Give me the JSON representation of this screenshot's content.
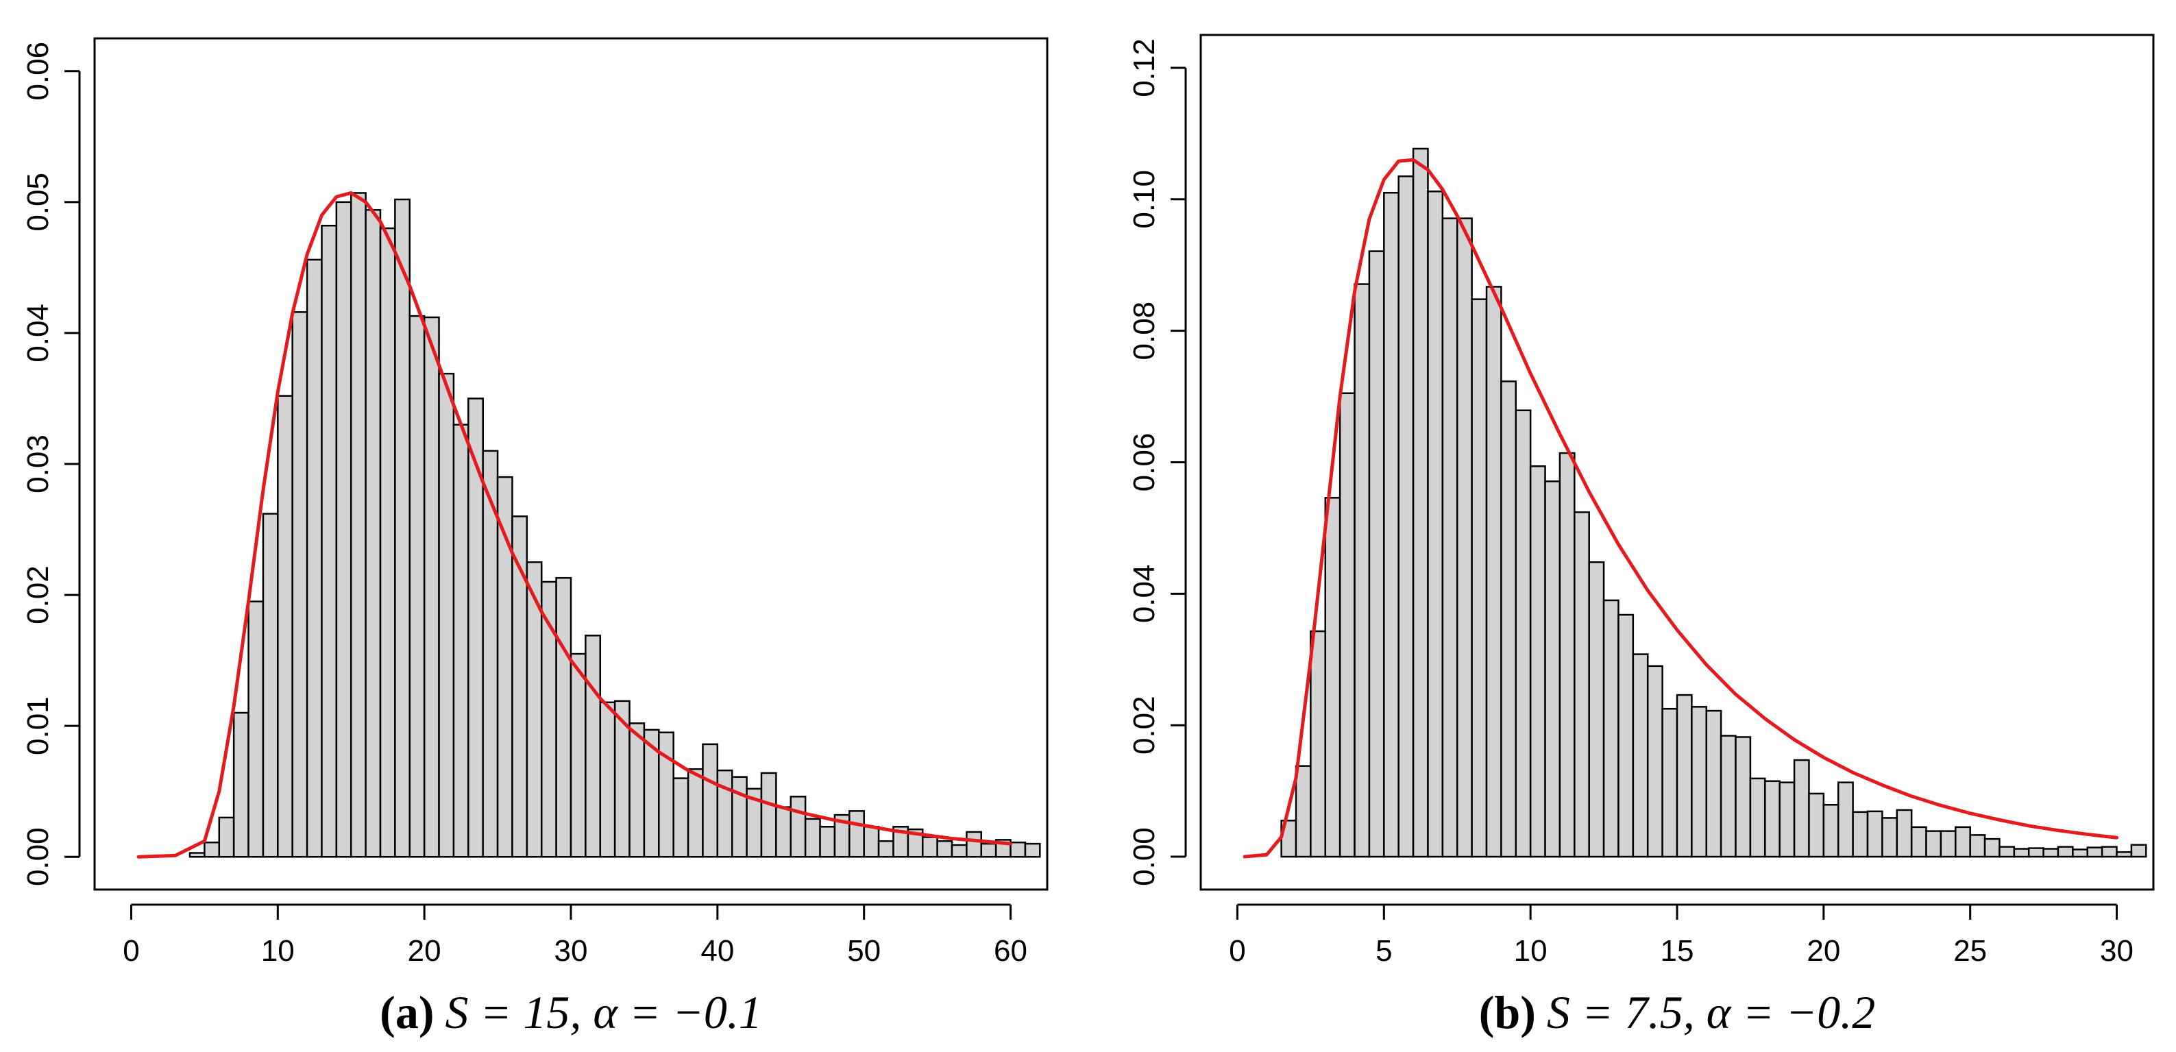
{
  "chart_data": [
    {
      "type": "bar",
      "caption": {
        "letter": "(a)",
        "text": "S = 15, α = −0.1"
      },
      "xlim": [
        -2.5,
        62.5
      ],
      "ylim": [
        -0.0025,
        0.0625
      ],
      "xticks": [
        0,
        10,
        20,
        30,
        40,
        50,
        60
      ],
      "xtick_labels": [
        "0",
        "10",
        "20",
        "30",
        "40",
        "50",
        "60"
      ],
      "yticks": [
        0.0,
        0.01,
        0.02,
        0.03,
        0.04,
        0.05,
        0.06
      ],
      "ytick_labels": [
        "0.00",
        "0.01",
        "0.02",
        "0.03",
        "0.04",
        "0.05",
        "0.06"
      ],
      "bin_start": 4,
      "bin_width": 1,
      "bar_fill": "#d3d3d3",
      "bar_stroke": "#000000",
      "values": [
        0.0003,
        0.0011,
        0.003,
        0.011,
        0.0195,
        0.0262,
        0.0352,
        0.0416,
        0.0456,
        0.0482,
        0.05,
        0.0507,
        0.0494,
        0.048,
        0.0502,
        0.0413,
        0.0412,
        0.0369,
        0.033,
        0.035,
        0.031,
        0.029,
        0.026,
        0.0225,
        0.021,
        0.0213,
        0.0155,
        0.0169,
        0.0118,
        0.0119,
        0.0102,
        0.0097,
        0.0095,
        0.006,
        0.0067,
        0.0086,
        0.0066,
        0.0061,
        0.0052,
        0.0064,
        0.0038,
        0.0046,
        0.0029,
        0.0023,
        0.0032,
        0.0035,
        0.0023,
        0.0012,
        0.0023,
        0.0021,
        0.0015,
        0.0012,
        0.0009,
        0.0019,
        0.001,
        0.0013,
        0.0011,
        0.001
      ],
      "curve": {
        "color": "#e41a1c",
        "x": [
          0.5,
          3,
          5,
          6,
          7,
          8,
          9,
          10,
          11,
          12,
          13,
          14,
          15,
          16,
          17,
          18,
          19,
          20,
          22,
          24,
          26,
          28,
          30,
          32,
          34,
          36,
          38,
          40,
          42,
          44,
          46,
          48,
          50,
          52,
          54,
          56,
          58,
          60
        ],
        "y": [
          0.0,
          0.0001,
          0.0012,
          0.005,
          0.0115,
          0.0195,
          0.028,
          0.0355,
          0.0415,
          0.046,
          0.049,
          0.0504,
          0.0507,
          0.05,
          0.0485,
          0.0462,
          0.0436,
          0.0406,
          0.0345,
          0.0286,
          0.0232,
          0.0187,
          0.015,
          0.0121,
          0.0098,
          0.008,
          0.0066,
          0.0055,
          0.0046,
          0.0039,
          0.0033,
          0.0028,
          0.0024,
          0.002,
          0.0017,
          0.0014,
          0.0012,
          0.001
        ]
      }
    },
    {
      "type": "bar",
      "caption": {
        "letter": "(b)",
        "text": "S = 7.5, α = −0.2"
      },
      "xlim": [
        -1.25,
        31.25
      ],
      "ylim": [
        -0.005,
        0.125
      ],
      "xticks": [
        0,
        5,
        10,
        15,
        20,
        25,
        30
      ],
      "xtick_labels": [
        "0",
        "5",
        "10",
        "15",
        "20",
        "25",
        "30"
      ],
      "yticks": [
        0.0,
        0.02,
        0.04,
        0.06,
        0.08,
        0.1,
        0.12
      ],
      "ytick_labels": [
        "0.00",
        "0.02",
        "0.04",
        "0.06",
        "0.08",
        "0.10",
        "0.12"
      ],
      "bin_start": 1.5,
      "bin_width": 0.5,
      "bar_fill": "#d3d3d3",
      "bar_stroke": "#000000",
      "values": [
        0.0055,
        0.0138,
        0.0343,
        0.0546,
        0.0705,
        0.0871,
        0.0921,
        0.101,
        0.1035,
        0.1077,
        0.1012,
        0.0971,
        0.0971,
        0.0848,
        0.0867,
        0.0723,
        0.0679,
        0.0594,
        0.0571,
        0.0614,
        0.0524,
        0.0448,
        0.039,
        0.0368,
        0.0308,
        0.029,
        0.0225,
        0.0246,
        0.0228,
        0.0222,
        0.0184,
        0.0182,
        0.0119,
        0.0115,
        0.0113,
        0.0147,
        0.0096,
        0.0079,
        0.0113,
        0.0068,
        0.0069,
        0.0059,
        0.0071,
        0.0045,
        0.0039,
        0.0039,
        0.0045,
        0.0033,
        0.0027,
        0.0015,
        0.0012,
        0.0013,
        0.0012,
        0.0015,
        0.0011,
        0.0014,
        0.0015,
        0.0007,
        0.0018
      ],
      "curve": {
        "color": "#e41a1c",
        "x": [
          0.25,
          1,
          1.5,
          2,
          2.5,
          3,
          3.5,
          4,
          4.5,
          5,
          5.5,
          6,
          6.5,
          7,
          7.5,
          8,
          9,
          10,
          11,
          12,
          13,
          14,
          15,
          16,
          17,
          18,
          19,
          20,
          21,
          22,
          23,
          24,
          25,
          26,
          27,
          28,
          29,
          30
        ],
        "y": [
          0.0,
          0.0003,
          0.003,
          0.012,
          0.03,
          0.05,
          0.07,
          0.086,
          0.097,
          0.103,
          0.1058,
          0.106,
          0.1045,
          0.1015,
          0.0975,
          0.093,
          0.0835,
          0.0735,
          0.0643,
          0.0555,
          0.0475,
          0.0405,
          0.0345,
          0.0292,
          0.0247,
          0.021,
          0.0178,
          0.0151,
          0.0128,
          0.0109,
          0.0092,
          0.0078,
          0.0066,
          0.0056,
          0.0047,
          0.004,
          0.0034,
          0.0029
        ]
      }
    }
  ]
}
